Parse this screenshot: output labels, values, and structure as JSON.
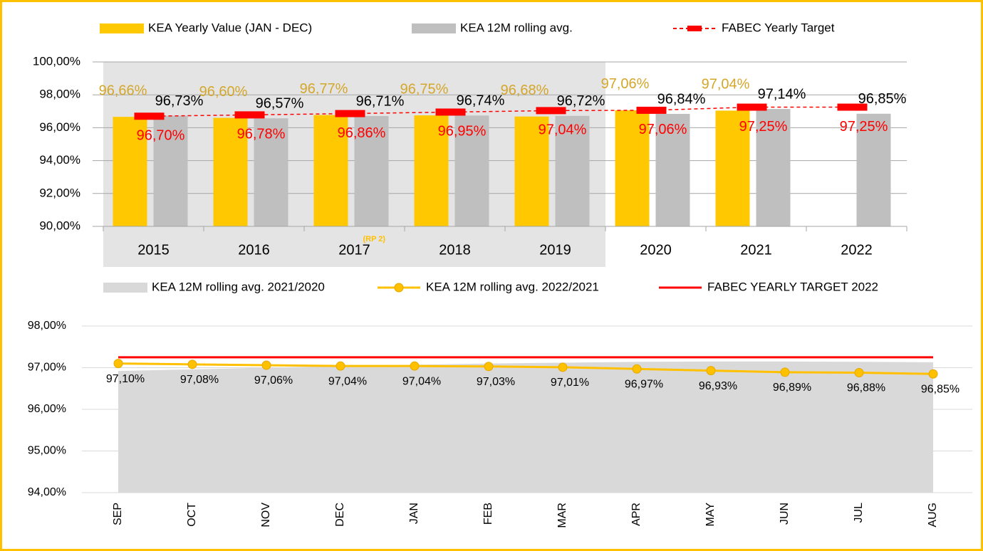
{
  "chart_data": [
    {
      "type": "bar",
      "categories": [
        "2015",
        "2016",
        "2017",
        "2018",
        "2019",
        "2020",
        "2021",
        "2022"
      ],
      "annotations": [
        "(RP 2)"
      ],
      "ylim": [
        90,
        100
      ],
      "yticks": [
        {
          "value": 90,
          "label": "90,00%"
        },
        {
          "value": 92,
          "label": "92,00%"
        },
        {
          "value": 94,
          "label": "94,00%"
        },
        {
          "value": 96,
          "label": "96,00%"
        },
        {
          "value": 98,
          "label": "98,00%"
        },
        {
          "value": 100,
          "label": "100,00%"
        }
      ],
      "grid": true,
      "legend": "top",
      "series": [
        {
          "name": "KEA Yearly Value (JAN - DEC)",
          "type": "bar",
          "color": "#FFC800",
          "label_color": "#D4A62A",
          "values": [
            96.66,
            96.6,
            96.77,
            96.75,
            96.68,
            97.06,
            97.04,
            null
          ],
          "value_labels": [
            "96,66%",
            "96,60%",
            "96,77%",
            "96,75%",
            "96,68%",
            "97,06%",
            "97,04%",
            null
          ]
        },
        {
          "name": "KEA 12M rolling avg.",
          "type": "bar",
          "color": "#BFBFBF",
          "label_color": "#000000",
          "values": [
            96.73,
            96.57,
            96.71,
            96.74,
            96.72,
            96.84,
            97.14,
            96.85
          ],
          "value_labels": [
            "96,73%",
            "96,57%",
            "96,71%",
            "96,74%",
            "96,72%",
            "96,84%",
            "97,14%",
            "96,85%"
          ]
        },
        {
          "name": "FABEC Yearly Target",
          "type": "line",
          "dashed": true,
          "color": "#FF0000",
          "label_color": "#FF0000",
          "values": [
            96.7,
            96.78,
            96.86,
            96.95,
            97.04,
            97.06,
            97.25,
            97.25
          ],
          "value_labels": [
            "96,70%",
            "96,78%",
            "96,86%",
            "96,95%",
            "97,04%",
            "97,06%",
            "97,25%",
            "97,25%"
          ]
        }
      ]
    },
    {
      "type": "line",
      "categories": [
        "SEP",
        "OCT",
        "NOV",
        "DEC",
        "JAN",
        "FEB",
        "MAR",
        "APR",
        "MAY",
        "JUN",
        "JUL",
        "AUG"
      ],
      "ylim": [
        94,
        98
      ],
      "yticks": [
        {
          "value": 94,
          "label": "94,00%"
        },
        {
          "value": 95,
          "label": "95,00%"
        },
        {
          "value": 96,
          "label": "96,00%"
        },
        {
          "value": 97,
          "label": "97,00%"
        },
        {
          "value": 98,
          "label": "98,00%"
        }
      ],
      "grid": true,
      "legend": "top",
      "series": [
        {
          "name": "KEA 12M rolling avg. 2021/2020",
          "type": "area",
          "color": "#D9D9D9",
          "values": [
            96.92,
            96.96,
            97.0,
            97.04,
            97.07,
            97.1,
            97.12,
            97.14,
            97.15,
            97.15,
            97.14,
            97.13
          ]
        },
        {
          "name": "KEA 12M rolling avg. 2022/2021",
          "type": "line",
          "markers": true,
          "color": "#FFC000",
          "values": [
            97.1,
            97.08,
            97.06,
            97.04,
            97.04,
            97.03,
            97.01,
            96.97,
            96.93,
            96.89,
            96.88,
            96.85
          ],
          "value_labels": [
            "97,10%",
            "97,08%",
            "97,06%",
            "97,04%",
            "97,04%",
            "97,03%",
            "97,01%",
            "96,97%",
            "96,93%",
            "96,89%",
            "96,88%",
            "96,85%"
          ]
        },
        {
          "name": "FABEC YEARLY TARGET 2022",
          "type": "line",
          "color": "#FF0000",
          "values": [
            97.25,
            97.25,
            97.25,
            97.25,
            97.25,
            97.25,
            97.25,
            97.25,
            97.25,
            97.25,
            97.25,
            97.25
          ]
        }
      ]
    }
  ]
}
